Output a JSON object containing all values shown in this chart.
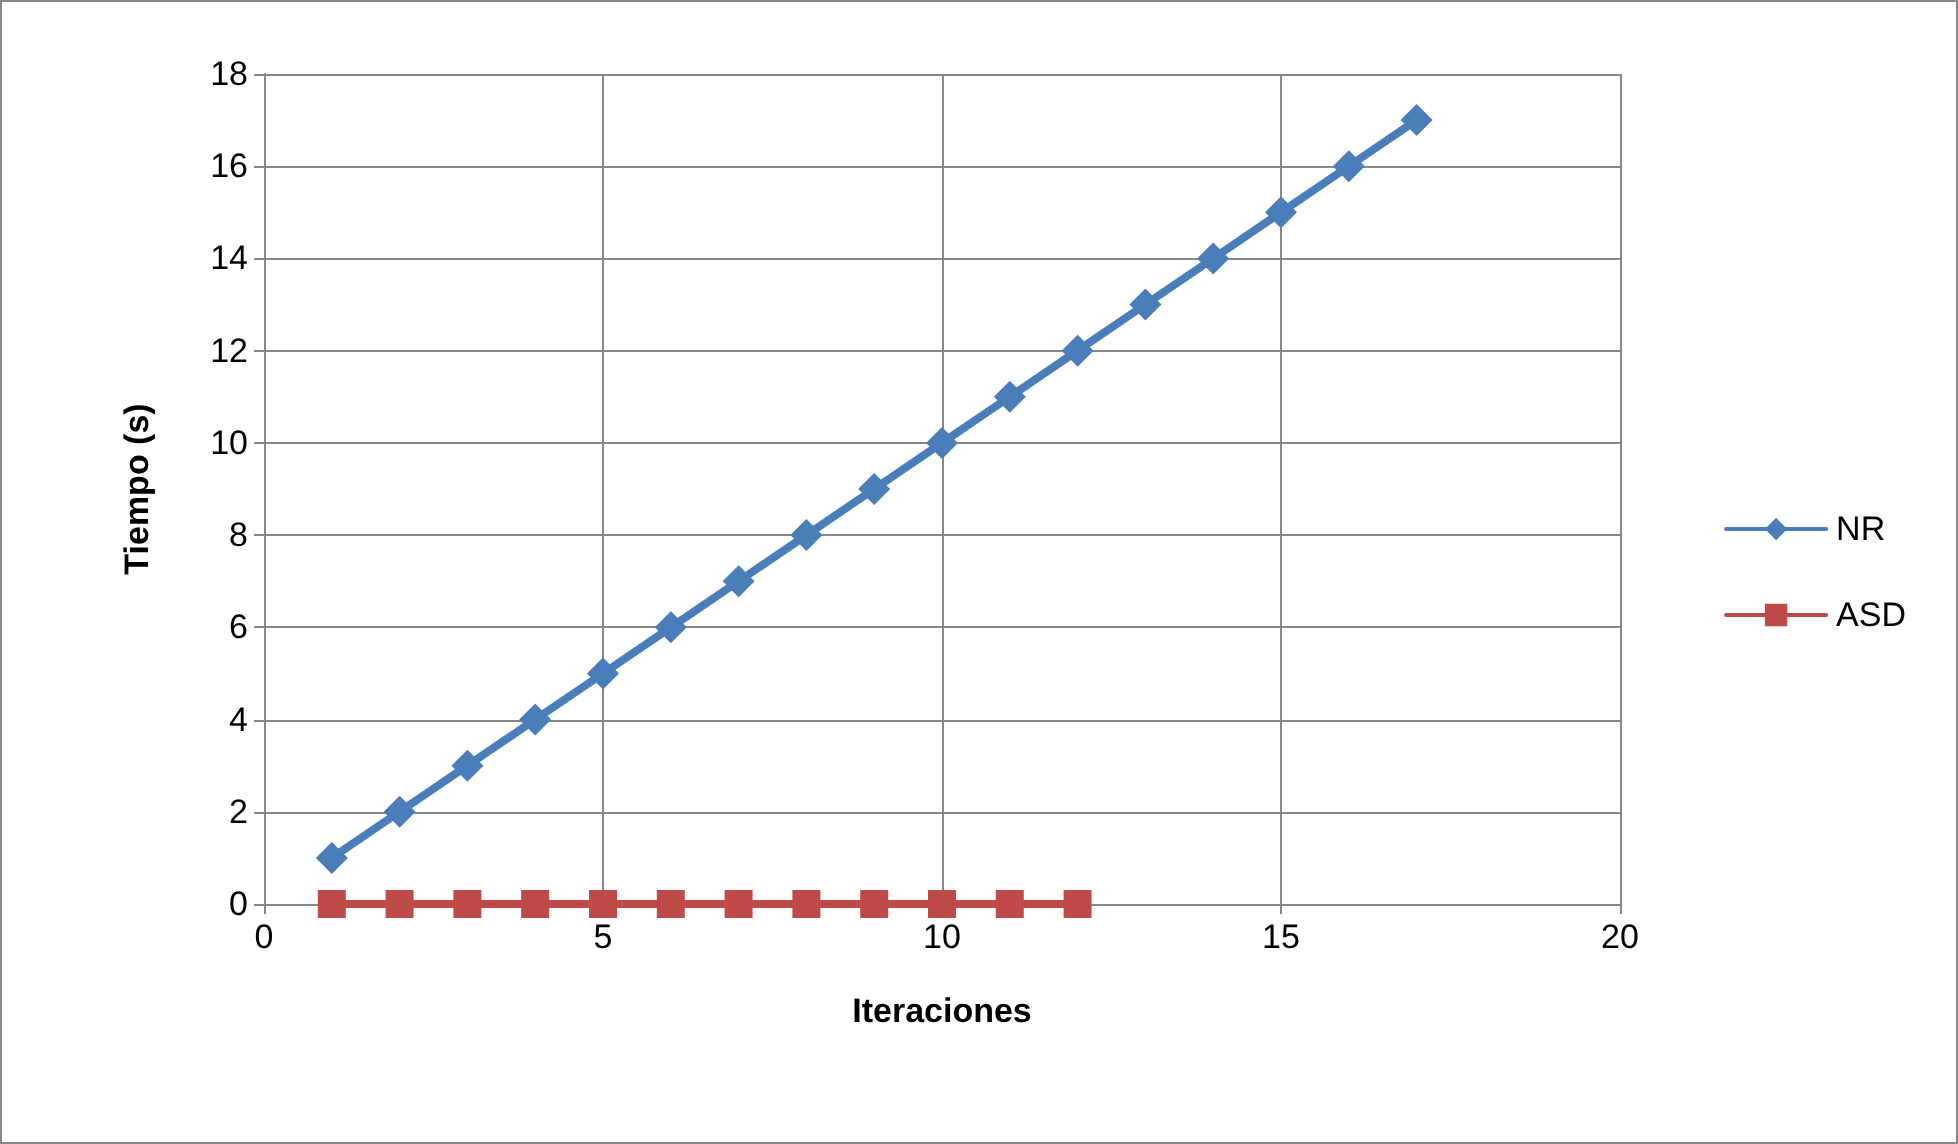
{
  "chart_data": {
    "type": "line",
    "xlabel": "Iteraciones",
    "ylabel": "Tiempo (s)",
    "xlim": [
      0,
      20
    ],
    "xticks": [
      0,
      5,
      10,
      15,
      20
    ],
    "ylim": [
      0,
      18
    ],
    "yticks": [
      0,
      2,
      4,
      6,
      8,
      10,
      12,
      14,
      16,
      18
    ],
    "grid": true,
    "legend": "right",
    "line_style": "solid",
    "series": [
      {
        "name": "NR",
        "color": "#4a7ebb",
        "marker": "diamond",
        "x": [
          1,
          2,
          3,
          4,
          5,
          6,
          7,
          8,
          9,
          10,
          11,
          12,
          13,
          14,
          15,
          16,
          17
        ],
        "values": [
          1,
          2,
          3,
          4,
          5,
          6,
          7,
          8,
          9,
          10,
          11,
          12,
          13,
          14,
          15,
          16,
          17
        ]
      },
      {
        "name": "ASD",
        "color": "#be4b48",
        "marker": "square",
        "x": [
          1,
          2,
          3,
          4,
          5,
          6,
          7,
          8,
          9,
          10,
          11,
          12
        ],
        "values": [
          0,
          0,
          0,
          0,
          0,
          0,
          0,
          0,
          0,
          0,
          0,
          0
        ]
      }
    ]
  }
}
